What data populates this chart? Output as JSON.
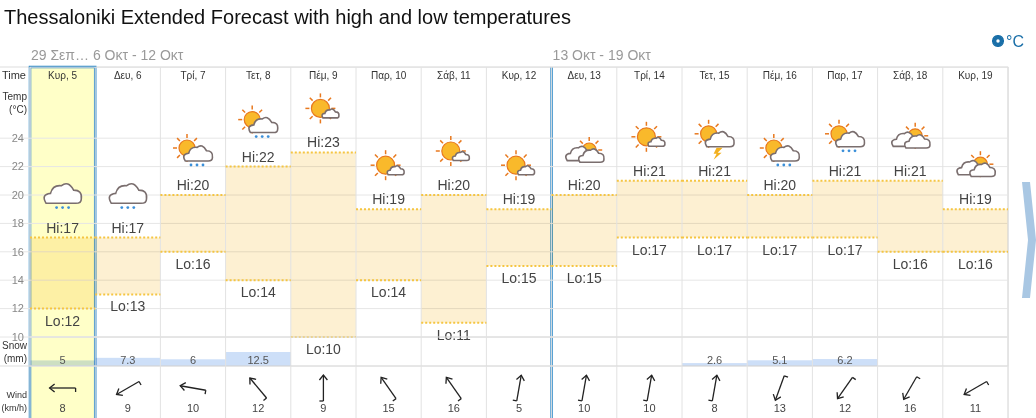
{
  "chart_data": [
    {
      "type": "bar",
      "title": "Thessaloniki Extended Forecast with high and low temperatures",
      "xlabel": "Time",
      "ylabel": "Temp (°C)",
      "categories": [
        "Κυρ, 5",
        "Δευ, 6",
        "Τρί, 7",
        "Τετ, 8",
        "Πέμ, 9",
        "Παρ, 10",
        "Σάβ, 11",
        "Κυρ, 12",
        "Δευ, 13",
        "Τρί, 14",
        "Τετ, 15",
        "Πέμ, 16",
        "Παρ, 17",
        "Σάβ, 18",
        "Κυρ, 19"
      ],
      "base": [
        12,
        13,
        16,
        14,
        10,
        14,
        11,
        15,
        15,
        17,
        17,
        17,
        17,
        16,
        16
      ],
      "values": [
        5,
        4,
        4,
        8,
        13,
        5,
        9,
        4,
        5,
        4,
        4,
        3,
        4,
        5,
        3
      ],
      "color": "#fdf0d2",
      "ylim": [
        10,
        29
      ],
      "yticks": [
        10,
        12,
        14,
        16,
        18,
        20,
        22,
        24
      ],
      "grid": "y",
      "annotations": [
        "°C",
        "29 Σεπ… 6 Οκτ - 12 Οκτ",
        "13 Οκτ - 19 Οκτ",
        {
          "text": "Hi:17",
          "x": "Κυρ, 5",
          "y": 17
        },
        {
          "text": "Lo:12",
          "x": "Κυρ, 5",
          "y": 12
        },
        {
          "text": "Hi:17",
          "x": "Δευ, 6",
          "y": 17
        },
        {
          "text": "Lo:13",
          "x": "Δευ, 6",
          "y": 13
        },
        {
          "text": "Hi:20",
          "x": "Τρί, 7",
          "y": 20
        },
        {
          "text": "Lo:16",
          "x": "Τρί, 7",
          "y": 16
        },
        {
          "text": "Hi:22",
          "x": "Τετ, 8",
          "y": 22
        },
        {
          "text": "Lo:14",
          "x": "Τετ, 8",
          "y": 14
        },
        {
          "text": "Hi:23",
          "x": "Πέμ, 9",
          "y": 23
        },
        {
          "text": "Lo:10",
          "x": "Πέμ, 9",
          "y": 10
        },
        {
          "text": "Hi:19",
          "x": "Παρ, 10",
          "y": 19
        },
        {
          "text": "Lo:14",
          "x": "Παρ, 10",
          "y": 14
        },
        {
          "text": "Hi:20",
          "x": "Σάβ, 11",
          "y": 20
        },
        {
          "text": "Lo:11",
          "x": "Σάβ, 11",
          "y": 11
        },
        {
          "text": "Hi:19",
          "x": "Κυρ, 12",
          "y": 19
        },
        {
          "text": "Lo:15",
          "x": "Κυρ, 12",
          "y": 15
        },
        {
          "text": "Hi:20",
          "x": "Δευ, 13",
          "y": 20
        },
        {
          "text": "Lo:15",
          "x": "Δευ, 13",
          "y": 15
        },
        {
          "text": "Hi:21",
          "x": "Τρί, 14",
          "y": 21
        },
        {
          "text": "Lo:17",
          "x": "Τρί, 14",
          "y": 17
        },
        {
          "text": "Hi:21",
          "x": "Τετ, 15",
          "y": 21
        },
        {
          "text": "Lo:17",
          "x": "Τετ, 15",
          "y": 17
        },
        {
          "text": "Hi:20",
          "x": "Πέμ, 16",
          "y": 20
        },
        {
          "text": "Lo:17",
          "x": "Πέμ, 16",
          "y": 17
        },
        {
          "text": "Hi:21",
          "x": "Παρ, 17",
          "y": 21
        },
        {
          "text": "Lo:17",
          "x": "Παρ, 17",
          "y": 17
        },
        {
          "text": "Hi:21",
          "x": "Σάβ, 18",
          "y": 21
        },
        {
          "text": "Lo:16",
          "x": "Σάβ, 18",
          "y": 16
        },
        {
          "text": "Hi:19",
          "x": "Κυρ, 19",
          "y": 19
        },
        {
          "text": "Lo:16",
          "x": "Κυρ, 19",
          "y": 16
        }
      ]
    },
    {
      "type": "bar",
      "ylabel": "Snow (mm)",
      "categories": [
        null,
        null,
        null,
        null,
        null,
        null,
        null,
        null,
        null,
        null,
        null,
        null,
        null,
        null,
        null
      ],
      "values": [
        5,
        7.3,
        6,
        12.5,
        null,
        null,
        null,
        null,
        null,
        null,
        2.6,
        5.1,
        6.2,
        null,
        null
      ],
      "color": "#cddff8",
      "data_labels": true
    },
    {
      "type": "other",
      "ylabel": "Wind (km/h)",
      "categories": [
        null,
        null,
        null,
        null,
        null,
        null,
        null,
        null,
        null,
        null,
        null,
        null,
        null,
        null,
        null
      ],
      "values": [
        8,
        9,
        10,
        12,
        9,
        15,
        16,
        5,
        10,
        10,
        8,
        13,
        12,
        16,
        11
      ],
      "data_labels": true
    }
  ]
}
